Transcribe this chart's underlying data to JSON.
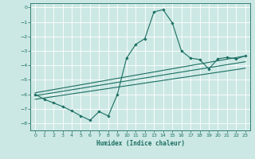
{
  "xlabel": "Humidex (Indice chaleur)",
  "bg_color": "#cce8e4",
  "grid_color": "#b0d8d2",
  "line_color": "#1a6e62",
  "xlim": [
    -0.5,
    23.5
  ],
  "ylim": [
    -8.5,
    0.3
  ],
  "xticks": [
    0,
    1,
    2,
    3,
    4,
    5,
    6,
    7,
    8,
    9,
    10,
    11,
    12,
    13,
    14,
    15,
    16,
    17,
    18,
    19,
    20,
    21,
    22,
    23
  ],
  "yticks": [
    0,
    -1,
    -2,
    -3,
    -4,
    -5,
    -6,
    -7,
    -8
  ],
  "main_x": [
    0,
    1,
    2,
    3,
    4,
    5,
    6,
    7,
    8,
    9,
    10,
    11,
    12,
    13,
    14,
    15,
    16,
    17,
    18,
    19,
    20,
    21,
    22,
    23
  ],
  "main_y": [
    -6.0,
    -6.35,
    -6.6,
    -6.85,
    -7.15,
    -7.5,
    -7.8,
    -7.2,
    -7.5,
    -6.0,
    -3.5,
    -2.55,
    -2.15,
    -0.3,
    -0.15,
    -1.05,
    -3.0,
    -3.5,
    -3.6,
    -4.25,
    -3.55,
    -3.45,
    -3.55,
    -3.35
  ],
  "line1_x": [
    0,
    23
  ],
  "line1_y": [
    -5.9,
    -3.35
  ],
  "line2_x": [
    0,
    23
  ],
  "line2_y": [
    -6.1,
    -3.75
  ],
  "line3_x": [
    0,
    23
  ],
  "line3_y": [
    -6.35,
    -4.2
  ]
}
